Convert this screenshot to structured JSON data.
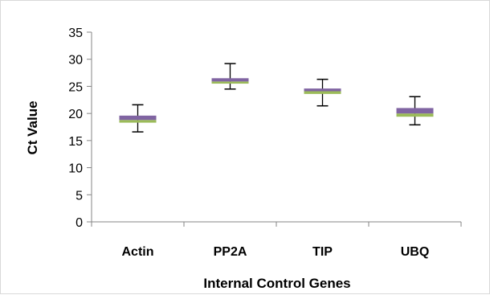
{
  "chart_data": {
    "type": "box",
    "title": "",
    "xlabel": "Internal Control Genes",
    "ylabel": "Ct Value",
    "ylim": [
      0,
      35
    ],
    "ytick_step": 5,
    "grid": false,
    "legend": "none",
    "categories": [
      "Actin",
      "PP2A",
      "TIP",
      "UBQ"
    ],
    "boxes": [
      {
        "category": "Actin",
        "min": 16.6,
        "q1": 18.3,
        "median": 18.8,
        "q3": 19.6,
        "max": 21.6
      },
      {
        "category": "PP2A",
        "min": 24.5,
        "q1": 25.5,
        "median": 25.9,
        "q3": 26.5,
        "max": 29.2
      },
      {
        "category": "TIP",
        "min": 21.4,
        "q1": 23.6,
        "median": 24.1,
        "q3": 24.6,
        "max": 26.3
      },
      {
        "category": "UBQ",
        "min": 17.9,
        "q1": 19.4,
        "median": 20.0,
        "q3": 21.0,
        "max": 23.1
      }
    ],
    "colors": {
      "lower_segment": "#9bbb59",
      "upper_segment": "#8064a2",
      "whisker": "#000000",
      "axis": "#868686"
    }
  }
}
